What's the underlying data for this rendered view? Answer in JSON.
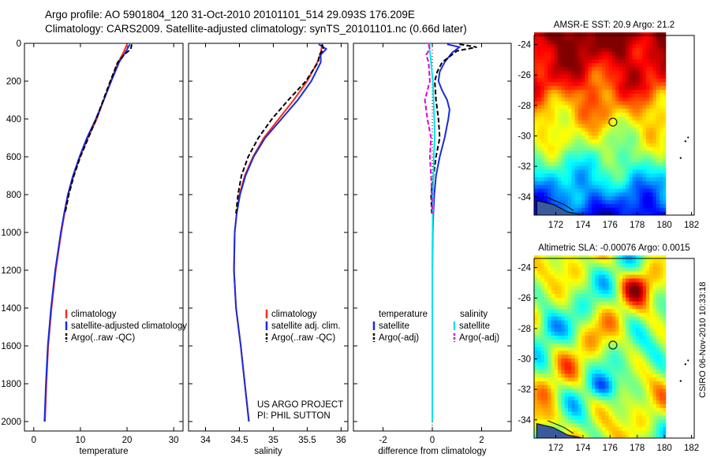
{
  "header": {
    "line1": "Argo profile: AO 5901804_120 31-Oct-2010 20101101_514 29.093S 176.209E",
    "line2": "Climatology: CARS2009. Satellite-adjusted climatology: synTS_20101101.nc (0.66d later)"
  },
  "side_label": "CSIRO 06-Nov-2010 10:33:18",
  "colors": {
    "climatology": "#ff2a1a",
    "satellite": "#1a2bdc",
    "argo": "#000000",
    "satellite_diff": "#00e5ee",
    "argo_adj_diff": "#e000e0",
    "marker": "#222222"
  },
  "chart_data": [
    {
      "type": "line",
      "id": "temperature-panel",
      "xlabel": "temperature",
      "ylabel": "",
      "xlim": [
        -2,
        32
      ],
      "ylim": [
        2050,
        0
      ],
      "x_ticks": [
        0,
        10,
        20,
        30
      ],
      "y_ticks": [
        0,
        200,
        400,
        600,
        800,
        1000,
        1200,
        1400,
        1600,
        1800,
        2000
      ],
      "legend": {
        "placement": "lower-middle",
        "entries": [
          "climatology",
          "satellite-adjusted climatology",
          "Argo(..raw -QC)"
        ]
      },
      "series": [
        {
          "name": "climatology",
          "color": "#ff2a1a",
          "dash": "",
          "depth": [
            5,
            50,
            100,
            200,
            300,
            400,
            500,
            600,
            700,
            800,
            900,
            1000,
            1200,
            1400,
            1600,
            1800,
            2000
          ],
          "values": [
            20.0,
            19.2,
            18.1,
            16.5,
            15.0,
            13.5,
            11.6,
            9.9,
            8.5,
            7.4,
            6.6,
            5.9,
            4.7,
            3.8,
            3.1,
            2.7,
            2.4
          ]
        },
        {
          "name": "satellite-adjusted climatology",
          "color": "#1a2bdc",
          "dash": "",
          "depth": [
            5,
            50,
            100,
            200,
            300,
            400,
            500,
            600,
            700,
            800,
            900,
            1000,
            1200,
            1400,
            1600,
            1800,
            2000
          ],
          "values": [
            20.6,
            19.6,
            18.3,
            16.6,
            15.0,
            13.3,
            11.4,
            9.8,
            8.4,
            7.3,
            6.5,
            5.8,
            4.6,
            3.7,
            3.0,
            2.6,
            2.3
          ]
        },
        {
          "name": "Argo(..raw -QC)",
          "color": "#000000",
          "dash": "6,3",
          "depth": [
            5,
            30,
            60,
            100,
            200,
            300,
            400,
            500,
            600,
            700,
            800,
            900
          ],
          "values": [
            21.0,
            20.8,
            19.4,
            18.0,
            16.4,
            14.9,
            13.4,
            11.7,
            10.0,
            8.6,
            7.5,
            6.7
          ]
        }
      ]
    },
    {
      "type": "line",
      "id": "salinity-panel",
      "xlabel": "salinity",
      "ylabel": "",
      "xlim": [
        33.75,
        36.1
      ],
      "ylim": [
        2050,
        0
      ],
      "x_ticks": [
        34,
        34.5,
        35,
        35.5,
        36
      ],
      "legend": {
        "placement": "lower-right",
        "entries": [
          "climatology",
          "satellite adj. clim.",
          "Argo(..raw -QC)"
        ]
      },
      "annotations": [
        "US ARGO PROJECT",
        "PI: PHIL SUTTON"
      ],
      "series": [
        {
          "name": "climatology",
          "color": "#ff2a1a",
          "dash": "",
          "depth": [
            5,
            50,
            100,
            200,
            300,
            400,
            500,
            600,
            700,
            800,
            900,
            1000,
            1200,
            1400,
            1600,
            1800,
            2000
          ],
          "values": [
            35.72,
            35.7,
            35.65,
            35.5,
            35.3,
            35.08,
            34.86,
            34.7,
            34.58,
            34.5,
            34.46,
            34.43,
            34.42,
            34.45,
            34.52,
            34.58,
            34.64
          ]
        },
        {
          "name": "satellite adj. clim.",
          "color": "#1a2bdc",
          "dash": "",
          "depth": [
            5,
            30,
            60,
            100,
            200,
            300,
            400,
            500,
            600,
            700,
            800,
            900,
            1000,
            1200,
            1400,
            1600,
            1800,
            2000
          ],
          "values": [
            35.67,
            35.78,
            35.7,
            35.7,
            35.56,
            35.36,
            35.12,
            34.88,
            34.71,
            34.59,
            34.51,
            34.46,
            34.43,
            34.42,
            34.45,
            34.52,
            34.58,
            34.64
          ]
        },
        {
          "name": "Argo(..raw -QC)",
          "color": "#000000",
          "dash": "6,3",
          "depth": [
            5,
            30,
            60,
            100,
            200,
            300,
            400,
            500,
            600,
            700,
            800,
            900
          ],
          "values": [
            35.72,
            35.74,
            35.68,
            35.66,
            35.48,
            35.22,
            34.98,
            34.78,
            34.63,
            34.53,
            34.48,
            34.45
          ]
        }
      ]
    },
    {
      "type": "line",
      "id": "difference-panel",
      "xlabel": "difference from climatology",
      "ylabel": "",
      "xlim": [
        -3.2,
        3.2
      ],
      "ylim": [
        2050,
        0
      ],
      "x_ticks": [
        -2,
        0,
        2
      ],
      "legend": {
        "placement": "lower-middle",
        "groups": [
          {
            "title": "temperature",
            "entries": [
              "satellite",
              "Argo(-adj)"
            ]
          },
          {
            "title": "salinity",
            "entries": [
              "satellite",
              "Argo(-adj)"
            ]
          }
        ]
      },
      "series": [
        {
          "name": "temperature satellite",
          "color": "#1a2bdc",
          "dash": "",
          "depth": [
            5,
            20,
            50,
            100,
            150,
            200,
            250,
            300,
            350,
            400,
            500,
            600,
            700,
            800,
            900,
            1000,
            1200,
            1400,
            1600,
            1800,
            2000
          ],
          "values": [
            0.6,
            1.1,
            0.8,
            0.5,
            0.3,
            0.25,
            0.4,
            0.6,
            0.7,
            0.65,
            0.5,
            0.3,
            0.15,
            0.08,
            0.04,
            0.02,
            0.0,
            0.0,
            0.0,
            0.0,
            0.0
          ]
        },
        {
          "name": "temperature Argo(-adj)",
          "color": "#000000",
          "dash": "6,3",
          "depth": [
            5,
            20,
            40,
            60,
            100,
            150,
            200,
            300,
            400,
            500,
            600,
            700,
            800,
            900
          ],
          "values": [
            1.1,
            1.8,
            1.0,
            0.8,
            0.4,
            0.2,
            0.1,
            0.15,
            0.25,
            0.3,
            0.15,
            0.05,
            -0.05,
            -0.02
          ]
        },
        {
          "name": "salinity satellite",
          "color": "#00e5ee",
          "dash": "",
          "depth": [
            5,
            30,
            60,
            100,
            200,
            300,
            400,
            500,
            600,
            800,
            1000,
            1200,
            1400,
            1600,
            1800,
            2000
          ],
          "values": [
            -0.1,
            -0.12,
            -0.08,
            -0.05,
            0.02,
            0.05,
            0.08,
            0.1,
            0.06,
            0.03,
            0.01,
            0.0,
            0.0,
            0.0,
            0.0,
            0.0
          ]
        },
        {
          "name": "salinity Argo(-adj)",
          "color": "#e000e0",
          "dash": "6,3",
          "depth": [
            5,
            30,
            60,
            100,
            200,
            300,
            400,
            500,
            600,
            700,
            800,
            900
          ],
          "values": [
            -0.15,
            -0.1,
            -0.25,
            -0.15,
            -0.1,
            -0.3,
            -0.2,
            -0.05,
            -0.1,
            -0.05,
            -0.02,
            0.0
          ]
        }
      ]
    },
    {
      "type": "heatmap",
      "id": "sst-map",
      "title": "AMSR-E SST: 20.9 Argo: 21.2",
      "xlim": [
        170.4,
        182.2
      ],
      "ylim": [
        -35.2,
        -23.4
      ],
      "x_ticks": [
        172,
        174,
        176,
        178,
        180,
        182
      ],
      "y_ticks": [
        -24,
        -26,
        -28,
        -30,
        -32,
        -34
      ],
      "float_position": {
        "lon": 176.209,
        "lat": -29.093
      },
      "data_lon_max": 180.1
    },
    {
      "type": "heatmap",
      "id": "sla-map",
      "title": "Altimetric SLA: -0.00076 Argo: 0.0015",
      "xlim": [
        170.4,
        182.2
      ],
      "ylim": [
        -35.2,
        -23.4
      ],
      "x_ticks": [
        172,
        174,
        176,
        178,
        180,
        182
      ],
      "y_ticks": [
        -24,
        -26,
        -28,
        -30,
        -32,
        -34
      ],
      "float_position": {
        "lon": 176.209,
        "lat": -29.093
      },
      "data_lon_max": 180.1
    }
  ]
}
